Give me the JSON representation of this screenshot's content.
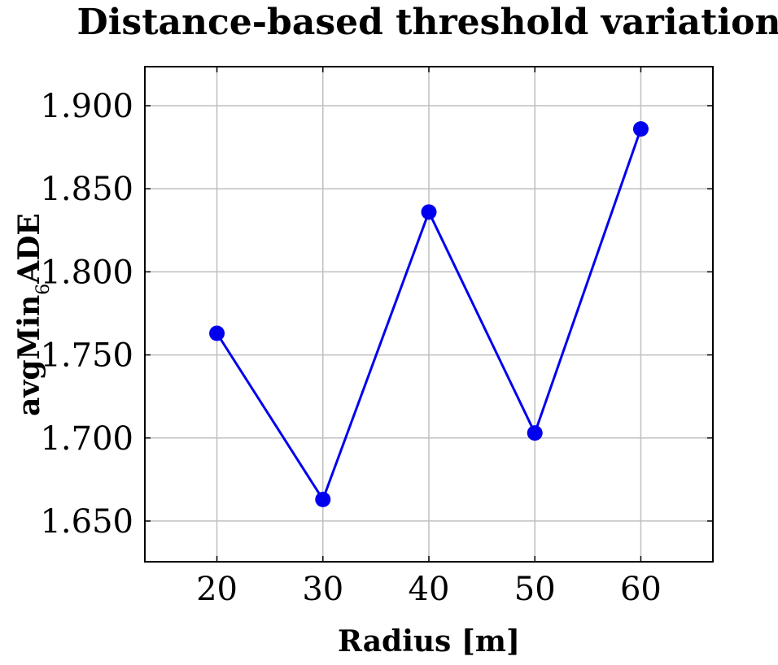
{
  "chart_data": {
    "type": "line",
    "title": "Distance-based threshold variation",
    "xlabel": "Radius [m]",
    "ylabel": {
      "main": "avgMin",
      "subscript": "6",
      "tail": "ADE"
    },
    "x": [
      20,
      30,
      40,
      50,
      60
    ],
    "series": [
      {
        "name": "avgMin6ADE",
        "values": [
          1.763,
          1.663,
          1.836,
          1.703,
          1.886
        ],
        "color": "#0000ee"
      }
    ],
    "xlim": [
      13.2,
      66.8
    ],
    "ylim": [
      1.6255,
      1.9235
    ],
    "xticks": [
      20,
      30,
      40,
      50,
      60
    ],
    "xtick_labels": [
      "20",
      "30",
      "40",
      "50",
      "60"
    ],
    "yticks": [
      1.65,
      1.7,
      1.75,
      1.8,
      1.85,
      1.9
    ],
    "ytick_labels": [
      "1.650",
      "1.700",
      "1.750",
      "1.800",
      "1.850",
      "1.900"
    ],
    "grid": true
  }
}
